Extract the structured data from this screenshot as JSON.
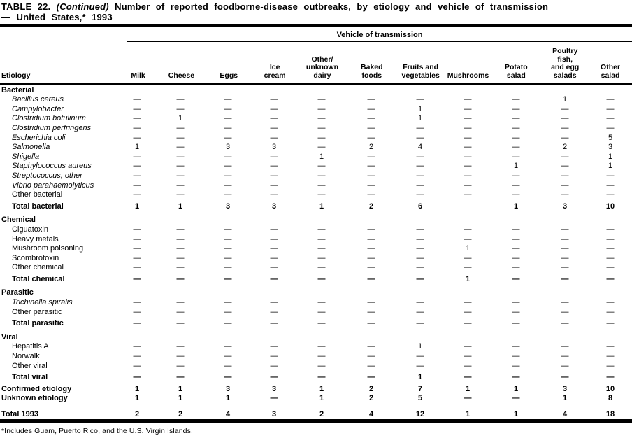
{
  "title": {
    "label": "TABLE 22.",
    "continued": "(Continued)",
    "text": "Number of reported foodborne-disease outbreaks, by etiology and vehicle of transmission",
    "line2": "— United States,* 1993"
  },
  "header": {
    "span_label": "Vehicle of transmission",
    "etiology_label": "Etiology",
    "columns": [
      "Milk",
      "Cheese",
      "Eggs",
      "Ice\ncream",
      "Other/\nunknown\ndairy",
      "Baked\nfoods",
      "Fruits and\nvegetables",
      "Mushrooms",
      "Potato\nsalad",
      "Poultry\nfish,\nand egg\nsalads",
      "Other\nsalad"
    ]
  },
  "rows": [
    {
      "label": "Bacterial",
      "style": "section",
      "values": []
    },
    {
      "label": "Bacillus cereus",
      "style": "subitalic",
      "values": [
        "—",
        "—",
        "—",
        "—",
        "—",
        "—",
        "—",
        "—",
        "—",
        "1",
        "—"
      ]
    },
    {
      "label": "Campylobacter",
      "style": "subitalic",
      "values": [
        "—",
        "—",
        "—",
        "—",
        "—",
        "—",
        "1",
        "—",
        "—",
        "—",
        "—"
      ]
    },
    {
      "label": "Clostridium botulinum",
      "style": "subitalic",
      "values": [
        "—",
        "1",
        "—",
        "—",
        "—",
        "—",
        "1",
        "—",
        "—",
        "—",
        "—"
      ]
    },
    {
      "label": "Clostridium perfringens",
      "style": "subitalic",
      "values": [
        "—",
        "—",
        "—",
        "—",
        "—",
        "—",
        "—",
        "—",
        "—",
        "—",
        "—"
      ]
    },
    {
      "label": "Escherichia coli",
      "style": "subitalic",
      "values": [
        "—",
        "—",
        "—",
        "—",
        "—",
        "—",
        "—",
        "—",
        "—",
        "—",
        "5"
      ]
    },
    {
      "label": "Salmonella",
      "style": "subitalic",
      "values": [
        "1",
        "—",
        "3",
        "3",
        "—",
        "2",
        "4",
        "—",
        "—",
        "2",
        "3"
      ]
    },
    {
      "label": "Shigella",
      "style": "subitalic",
      "values": [
        "—",
        "—",
        "—",
        "—",
        "1",
        "—",
        "—",
        "—",
        "—",
        "—",
        "1"
      ]
    },
    {
      "label": "Staphylococcus aureus",
      "style": "subitalic",
      "values": [
        "—",
        "—",
        "—",
        "—",
        "—",
        "—",
        "—",
        "—",
        "1",
        "—",
        "1"
      ]
    },
    {
      "label": "Streptococcus, other",
      "style": "subitalic",
      "values": [
        "—",
        "—",
        "—",
        "—",
        "—",
        "—",
        "—",
        "—",
        "—",
        "—",
        "—"
      ]
    },
    {
      "label": "Vibrio parahaemolyticus",
      "style": "subitalic",
      "values": [
        "—",
        "—",
        "—",
        "—",
        "—",
        "—",
        "—",
        "—",
        "—",
        "—",
        "—"
      ]
    },
    {
      "label": "Other bacterial",
      "style": "sub",
      "values": [
        "—",
        "—",
        "—",
        "—",
        "—",
        "—",
        "—",
        "—",
        "—",
        "—",
        "—"
      ]
    },
    {
      "label": "Total bacterial",
      "style": "total",
      "values": [
        "1",
        "1",
        "3",
        "3",
        "1",
        "2",
        "6",
        "",
        "1",
        "3",
        "10"
      ]
    },
    {
      "label": "Chemical",
      "style": "section",
      "values": []
    },
    {
      "label": "Ciguatoxin",
      "style": "sub",
      "values": [
        "—",
        "—",
        "—",
        "—",
        "—",
        "—",
        "—",
        "—",
        "—",
        "—",
        "—"
      ]
    },
    {
      "label": "Heavy metals",
      "style": "sub",
      "values": [
        "—",
        "—",
        "—",
        "—",
        "—",
        "—",
        "—",
        "—",
        "—",
        "—",
        "—"
      ]
    },
    {
      "label": "Mushroom poisoning",
      "style": "sub",
      "values": [
        "—",
        "—",
        "—",
        "—",
        "—",
        "—",
        "—",
        "1",
        "—",
        "—",
        "—"
      ]
    },
    {
      "label": "Scombrotoxin",
      "style": "sub",
      "values": [
        "—",
        "—",
        "—",
        "—",
        "—",
        "—",
        "—",
        "—",
        "—",
        "—",
        "—"
      ]
    },
    {
      "label": "Other chemical",
      "style": "sub",
      "values": [
        "—",
        "—",
        "—",
        "—",
        "—",
        "—",
        "—",
        "—",
        "—",
        "—",
        "—"
      ]
    },
    {
      "label": "Total chemical",
      "style": "total",
      "values": [
        "—",
        "—",
        "—",
        "—",
        "—",
        "—",
        "—",
        "1",
        "—",
        "—",
        "—"
      ]
    },
    {
      "label": "Parasitic",
      "style": "section",
      "values": []
    },
    {
      "label": "Trichinella spiralis",
      "style": "subitalic",
      "values": [
        "—",
        "—",
        "—",
        "—",
        "—",
        "—",
        "—",
        "—",
        "—",
        "—",
        "—"
      ]
    },
    {
      "label": "Other parasitic",
      "style": "sub",
      "values": [
        "—",
        "—",
        "—",
        "—",
        "—",
        "—",
        "—",
        "—",
        "—",
        "—",
        "—"
      ]
    },
    {
      "label": "Total parasitic",
      "style": "total",
      "values": [
        "—",
        "—",
        "—",
        "—",
        "—",
        "—",
        "—",
        "—",
        "—",
        "—",
        "—"
      ]
    },
    {
      "label": "Viral",
      "style": "section",
      "values": []
    },
    {
      "label": "Hepatitis A",
      "style": "sub",
      "values": [
        "—",
        "—",
        "—",
        "—",
        "—",
        "—",
        "1",
        "—",
        "—",
        "—",
        "—"
      ]
    },
    {
      "label": "Norwalk",
      "style": "sub",
      "values": [
        "—",
        "—",
        "—",
        "—",
        "—",
        "—",
        "—",
        "—",
        "—",
        "—",
        "—"
      ]
    },
    {
      "label": "Other viral",
      "style": "sub",
      "values": [
        "—",
        "—",
        "—",
        "—",
        "—",
        "—",
        "—",
        "—",
        "—",
        "—",
        "—"
      ]
    },
    {
      "label": "Total viral",
      "style": "total",
      "values": [
        "—",
        "—",
        "—",
        "—",
        "—",
        "—",
        "1",
        "—",
        "—",
        "—",
        "—"
      ]
    },
    {
      "label": "Confirmed etiology",
      "style": "grand",
      "values": [
        "1",
        "1",
        "3",
        "3",
        "1",
        "2",
        "7",
        "1",
        "1",
        "3",
        "10"
      ]
    },
    {
      "label": "Unknown etiology",
      "style": "grand",
      "values": [
        "1",
        "1",
        "1",
        "—",
        "1",
        "2",
        "5",
        "—",
        "—",
        "1",
        "8"
      ]
    },
    {
      "label": "Total 1993",
      "style": "grandtotal",
      "values": [
        "2",
        "2",
        "4",
        "3",
        "2",
        "4",
        "12",
        "1",
        "1",
        "4",
        "18"
      ]
    }
  ],
  "footnote": "*Includes Guam, Puerto Rico, and the U.S. Virgin Islands."
}
